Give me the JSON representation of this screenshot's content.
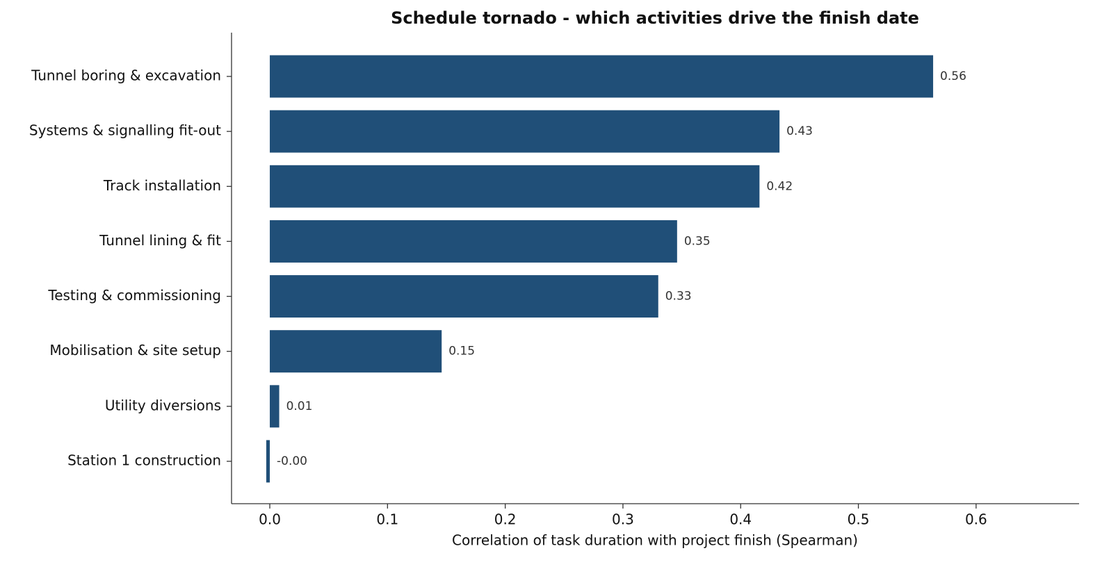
{
  "chart_data": {
    "type": "bar",
    "orientation": "horizontal",
    "title": "Schedule tornado - which activities drive the finish date",
    "xlabel": "Correlation of task duration with project finish (Spearman)",
    "categories": [
      "Tunnel boring & excavation",
      "Systems & signalling fit-out",
      "Track installation",
      "Tunnel lining & fit",
      "Testing & commissioning",
      "Mobilisation & site setup",
      "Utility diversions",
      "Station 1 construction"
    ],
    "values": [
      0.5635,
      0.433,
      0.416,
      0.346,
      0.33,
      0.146,
      0.008,
      -0.003
    ],
    "value_labels": [
      "0.56",
      "0.43",
      "0.42",
      "0.35",
      "0.33",
      "0.15",
      "0.01",
      "-0.00"
    ],
    "color": "#204f78",
    "xlim": [
      -0.0325,
      0.6875
    ],
    "xticks": [
      {
        "value": 0,
        "label": "0.0"
      },
      0.1,
      0.2,
      0.3,
      0.4,
      0.5,
      0.6
    ],
    "grid": false
  }
}
